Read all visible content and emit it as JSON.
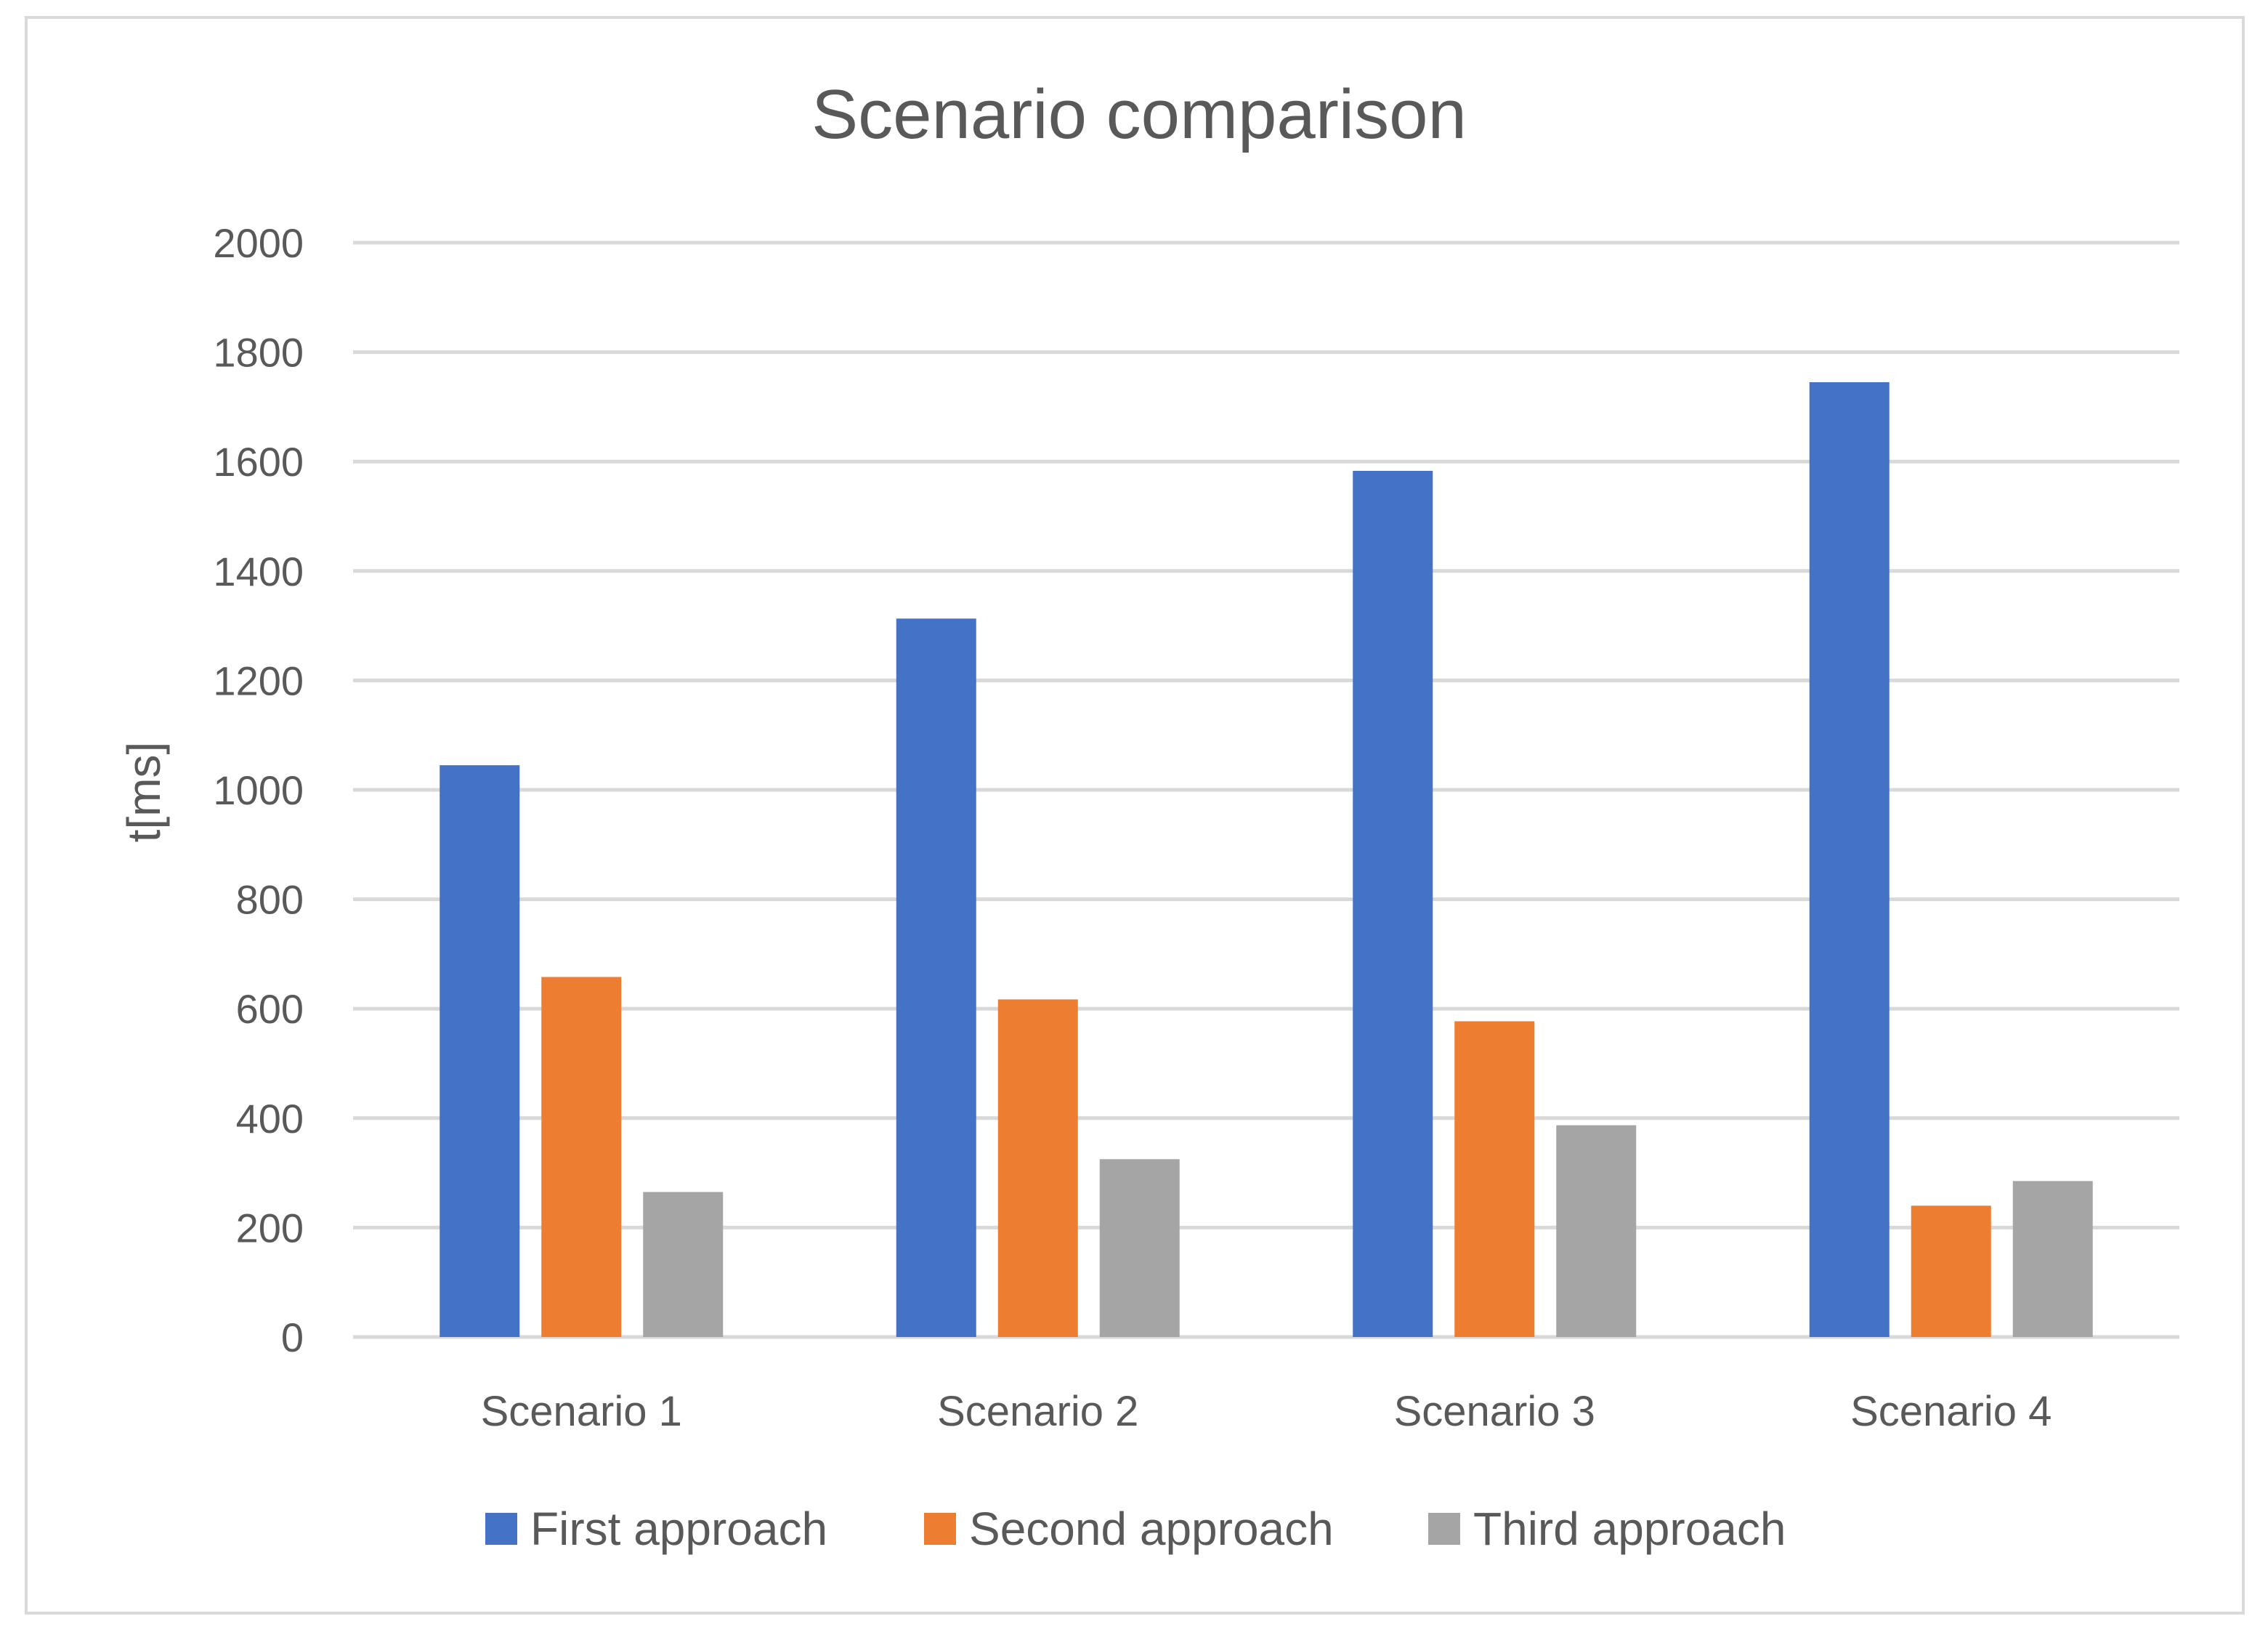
{
  "chart_data": {
    "type": "bar",
    "title": "Scenario comparison",
    "xlabel": "",
    "ylabel": "t[ms]",
    "ylim": [
      0,
      2000
    ],
    "yticks": [
      0,
      200,
      400,
      600,
      800,
      1000,
      1200,
      1400,
      1600,
      1800,
      2000
    ],
    "grid": true,
    "legend_position": "bottom",
    "categories": [
      "Scenario 1",
      "Scenario 2",
      "Scenario 3",
      "Scenario 4"
    ],
    "series": [
      {
        "name": "First approach",
        "color": "#4472c4",
        "values": [
          1045,
          1313,
          1583,
          1745
        ]
      },
      {
        "name": "Second approach",
        "color": "#ed7d31",
        "values": [
          658,
          617,
          577,
          240
        ]
      },
      {
        "name": "Third approach",
        "color": "#a5a5a5",
        "values": [
          265,
          325,
          387,
          285
        ]
      }
    ]
  }
}
